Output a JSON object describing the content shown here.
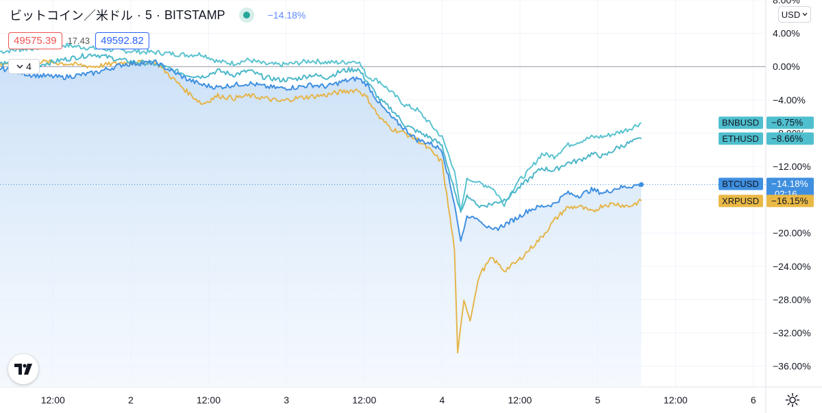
{
  "header": {
    "symbol": "ビットコイン／米ドル",
    "interval": "5",
    "exchange": "BITSTAMP",
    "change": "−14.18%"
  },
  "prices": {
    "sell": "49575.39",
    "spread": "17.43",
    "buy": "49592.82"
  },
  "indicators_toggle": {
    "count": "4"
  },
  "currency_button": {
    "label": "USD"
  },
  "colors": {
    "BTCUSD": "#3f8fe0",
    "ETHUSD": "#4cb7c9",
    "BNBUSD": "#5bc3cf",
    "XRPUSD": "#e5b54a",
    "accent": "#2962ff"
  },
  "icons": {
    "logo": "tradingview-logo-icon",
    "settings": "gear-icon"
  },
  "chart_data": {
    "type": "line",
    "y_unit": "%",
    "ylim": [
      -38.5,
      8.0
    ],
    "y_ticks": [
      "8.00%",
      "4.00%",
      "0.00%",
      "−4.00%",
      "−8.00%",
      "−12.00%",
      "−16.00%",
      "−20.00%",
      "−24.00%",
      "−28.00%",
      "−32.00%",
      "−36.00%"
    ],
    "y_tick_values": [
      8,
      4,
      0,
      -4,
      -8,
      -12,
      -16,
      -20,
      -24,
      -28,
      -32,
      -36
    ],
    "x_ticks": [
      "12:00",
      "2",
      "12:00",
      "3",
      "12:00",
      "4",
      "12:00",
      "5",
      "12:00",
      "6"
    ],
    "series": [
      {
        "name": "BNBUSD",
        "last_label": "−6.75%",
        "points": [
          [
            0,
            1.8
          ],
          [
            10,
            2.2
          ],
          [
            20,
            2.6
          ],
          [
            30,
            2.2
          ],
          [
            40,
            1.9
          ],
          [
            50,
            1.7
          ],
          [
            60,
            1.4
          ],
          [
            65,
            1.5
          ],
          [
            70,
            0.6
          ],
          [
            75,
            0.4
          ],
          [
            80,
            0.8
          ],
          [
            85,
            0.3
          ],
          [
            90,
            0.2
          ],
          [
            95,
            0.4
          ],
          [
            100,
            0.7
          ],
          [
            105,
            0.5
          ],
          [
            110,
            0.5
          ],
          [
            115,
            0.7
          ],
          [
            118,
            -1.2
          ],
          [
            122,
            -1.8
          ],
          [
            126,
            -3.2
          ],
          [
            130,
            -4.6
          ],
          [
            134,
            -5.2
          ],
          [
            138,
            -6.8
          ],
          [
            142,
            -8.5
          ],
          [
            146,
            -12.5
          ],
          [
            148,
            -17.5
          ],
          [
            150,
            -13.5
          ],
          [
            154,
            -14.0
          ],
          [
            158,
            -14.5
          ],
          [
            162,
            -16.5
          ],
          [
            166,
            -14.0
          ],
          [
            170,
            -12.5
          ],
          [
            174,
            -10.5
          ],
          [
            178,
            -10.8
          ],
          [
            182,
            -9.5
          ],
          [
            186,
            -9.0
          ],
          [
            190,
            -8.5
          ],
          [
            194,
            -8.4
          ],
          [
            198,
            -8.0
          ],
          [
            202,
            -7.5
          ],
          [
            206,
            -6.75
          ]
        ]
      },
      {
        "name": "ETHUSD",
        "last_label": "−8.66%",
        "points": [
          [
            0,
            0.5
          ],
          [
            10,
            0.0
          ],
          [
            20,
            0.8
          ],
          [
            30,
            1.5
          ],
          [
            40,
            0.7
          ],
          [
            50,
            0.3
          ],
          [
            60,
            -1.0
          ],
          [
            65,
            -1.2
          ],
          [
            70,
            -0.5
          ],
          [
            75,
            -1.0
          ],
          [
            80,
            -0.5
          ],
          [
            85,
            -1.3
          ],
          [
            90,
            -1.6
          ],
          [
            95,
            -1.5
          ],
          [
            100,
            -1.0
          ],
          [
            105,
            -1.3
          ],
          [
            110,
            -0.5
          ],
          [
            115,
            -0.3
          ],
          [
            118,
            -1.8
          ],
          [
            122,
            -4.0
          ],
          [
            126,
            -5.2
          ],
          [
            130,
            -7.0
          ],
          [
            134,
            -7.8
          ],
          [
            138,
            -8.5
          ],
          [
            142,
            -9.5
          ],
          [
            146,
            -15.0
          ],
          [
            148,
            -17.5
          ],
          [
            150,
            -15.5
          ],
          [
            154,
            -16.8
          ],
          [
            158,
            -16.5
          ],
          [
            162,
            -16.0
          ],
          [
            166,
            -14.8
          ],
          [
            170,
            -13.5
          ],
          [
            174,
            -12.2
          ],
          [
            178,
            -12.5
          ],
          [
            182,
            -11.6
          ],
          [
            186,
            -11.3
          ],
          [
            190,
            -10.5
          ],
          [
            194,
            -10.8
          ],
          [
            198,
            -9.8
          ],
          [
            202,
            -9.2
          ],
          [
            206,
            -8.66
          ]
        ]
      },
      {
        "name": "BTCUSD",
        "last_label": "−14.18%",
        "countdown": "02:16",
        "points": [
          [
            0,
            -0.2
          ],
          [
            10,
            -1.0
          ],
          [
            20,
            -1.3
          ],
          [
            30,
            -0.8
          ],
          [
            40,
            0.3
          ],
          [
            50,
            0.5
          ],
          [
            60,
            -1.5
          ],
          [
            65,
            -2.2
          ],
          [
            70,
            -2.5
          ],
          [
            75,
            -2.2
          ],
          [
            80,
            -2.0
          ],
          [
            85,
            -2.4
          ],
          [
            90,
            -2.6
          ],
          [
            95,
            -2.5
          ],
          [
            100,
            -2.2
          ],
          [
            105,
            -2.4
          ],
          [
            110,
            -1.8
          ],
          [
            115,
            -1.4
          ],
          [
            118,
            -2.2
          ],
          [
            122,
            -4.5
          ],
          [
            126,
            -6.2
          ],
          [
            130,
            -7.5
          ],
          [
            134,
            -8.8
          ],
          [
            138,
            -9.2
          ],
          [
            142,
            -10.0
          ],
          [
            146,
            -16.5
          ],
          [
            148,
            -21.0
          ],
          [
            150,
            -18.0
          ],
          [
            154,
            -18.3
          ],
          [
            158,
            -19.8
          ],
          [
            162,
            -19.0
          ],
          [
            166,
            -18.2
          ],
          [
            170,
            -17.2
          ],
          [
            174,
            -16.8
          ],
          [
            178,
            -16.5
          ],
          [
            182,
            -15.2
          ],
          [
            186,
            -15.5
          ],
          [
            190,
            -14.8
          ],
          [
            194,
            -15.2
          ],
          [
            198,
            -14.6
          ],
          [
            202,
            -14.4
          ],
          [
            206,
            -14.18
          ]
        ]
      },
      {
        "name": "XRPUSD",
        "last_label": "−16.15%",
        "points": [
          [
            0,
            0.3
          ],
          [
            10,
            0.7
          ],
          [
            20,
            0.4
          ],
          [
            30,
            0.0
          ],
          [
            40,
            0.5
          ],
          [
            50,
            0.5
          ],
          [
            60,
            -3.0
          ],
          [
            65,
            -4.5
          ],
          [
            70,
            -3.5
          ],
          [
            75,
            -3.8
          ],
          [
            80,
            -3.5
          ],
          [
            85,
            -3.8
          ],
          [
            90,
            -4.2
          ],
          [
            95,
            -3.8
          ],
          [
            100,
            -3.6
          ],
          [
            105,
            -3.4
          ],
          [
            110,
            -3.0
          ],
          [
            115,
            -2.8
          ],
          [
            118,
            -3.8
          ],
          [
            122,
            -6.2
          ],
          [
            126,
            -7.5
          ],
          [
            130,
            -8.0
          ],
          [
            134,
            -8.8
          ],
          [
            138,
            -10.0
          ],
          [
            142,
            -11.5
          ],
          [
            146,
            -22.0
          ],
          [
            147,
            -34.5
          ],
          [
            149,
            -28.0
          ],
          [
            151,
            -30.5
          ],
          [
            154,
            -25.0
          ],
          [
            158,
            -23.0
          ],
          [
            162,
            -24.5
          ],
          [
            166,
            -23.5
          ],
          [
            170,
            -22.0
          ],
          [
            174,
            -20.5
          ],
          [
            178,
            -18.5
          ],
          [
            182,
            -17.0
          ],
          [
            186,
            -16.8
          ],
          [
            190,
            -17.5
          ],
          [
            194,
            -16.6
          ],
          [
            198,
            -16.5
          ],
          [
            202,
            -16.8
          ],
          [
            206,
            -16.15
          ]
        ]
      }
    ]
  }
}
